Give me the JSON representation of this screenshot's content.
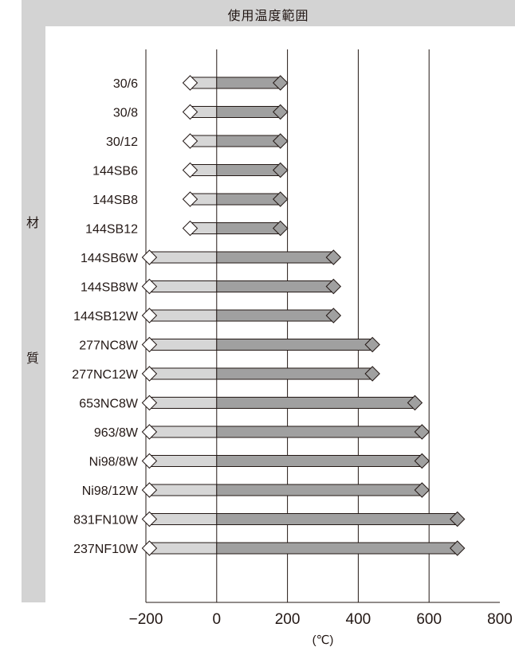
{
  "chart_data": {
    "type": "bar",
    "title": "使用温度範囲",
    "ylabel_chars": [
      "材",
      "質"
    ],
    "xlabel": "(℃)",
    "xlim": [
      -200,
      800
    ],
    "xticks": [
      "−200",
      "0",
      "200",
      "400",
      "600",
      "800"
    ],
    "categories": [
      "30/6",
      "30/8",
      "30/12",
      "144SB6",
      "144SB8",
      "144SB12",
      "144SB6W",
      "144SB8W",
      "144SB12W",
      "277NC8W",
      "277NC12W",
      "653NC8W",
      "963/8W",
      "Ni98/8W",
      "Ni98/12W",
      "831FN10W",
      "237NF10W"
    ],
    "min_values": [
      -75,
      -75,
      -75,
      -75,
      -75,
      -75,
      -190,
      -190,
      -190,
      -190,
      -190,
      -190,
      -190,
      -190,
      -190,
      -190,
      -190
    ],
    "max_values": [
      180,
      180,
      180,
      180,
      180,
      180,
      330,
      330,
      330,
      440,
      440,
      560,
      580,
      580,
      580,
      680,
      680
    ],
    "colors": {
      "negative_fill": "#d6d6d6",
      "positive_fill": "#a0a0a0",
      "tip_fill": "#ffffff",
      "outline": "#231815",
      "panel": "#d3d3d3"
    }
  }
}
